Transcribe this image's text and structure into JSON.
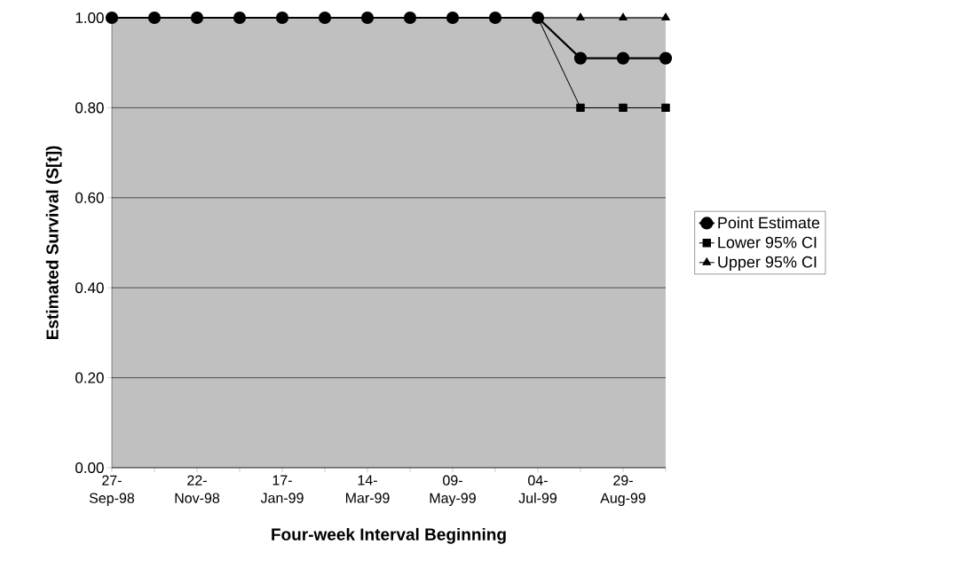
{
  "chart_data": {
    "type": "line",
    "xlabel": "Four-week Interval Beginning",
    "ylabel": "Estimated Survival (S[t])",
    "categories": [
      "27-Sep-98",
      null,
      "22-Nov-98",
      null,
      "17-Jan-99",
      null,
      "14-Mar-99",
      null,
      "09-May-99",
      null,
      "04-Jul-99",
      null,
      "29-Aug-99",
      null
    ],
    "series": [
      {
        "name": "Point Estimate",
        "color": "#000000",
        "marker": "circle",
        "values": [
          1,
          1,
          1,
          1,
          1,
          1,
          1,
          1,
          1,
          1,
          1,
          0.91,
          0.91,
          0.91
        ]
      },
      {
        "name": "Lower 95% CI",
        "color": "#000000",
        "marker": "square",
        "values": [
          1,
          1,
          1,
          1,
          1,
          1,
          1,
          1,
          1,
          1,
          1,
          0.8,
          0.8,
          0.8
        ]
      },
      {
        "name": "Upper 95% CI",
        "color": "#000000",
        "marker": "triangle",
        "values": [
          null,
          null,
          null,
          null,
          null,
          null,
          null,
          null,
          null,
          null,
          1,
          1,
          1,
          1
        ]
      }
    ],
    "ylim": [
      0,
      1
    ],
    "yticks": [
      {
        "value": 0,
        "label": "0.00"
      },
      {
        "value": 0.2,
        "label": "0.20"
      },
      {
        "value": 0.4,
        "label": "0.40"
      },
      {
        "value": 0.6,
        "label": "0.60"
      },
      {
        "value": 0.8,
        "label": "0.80"
      },
      {
        "value": 1,
        "label": "1.00"
      }
    ],
    "grid": "y",
    "legend": "right"
  }
}
